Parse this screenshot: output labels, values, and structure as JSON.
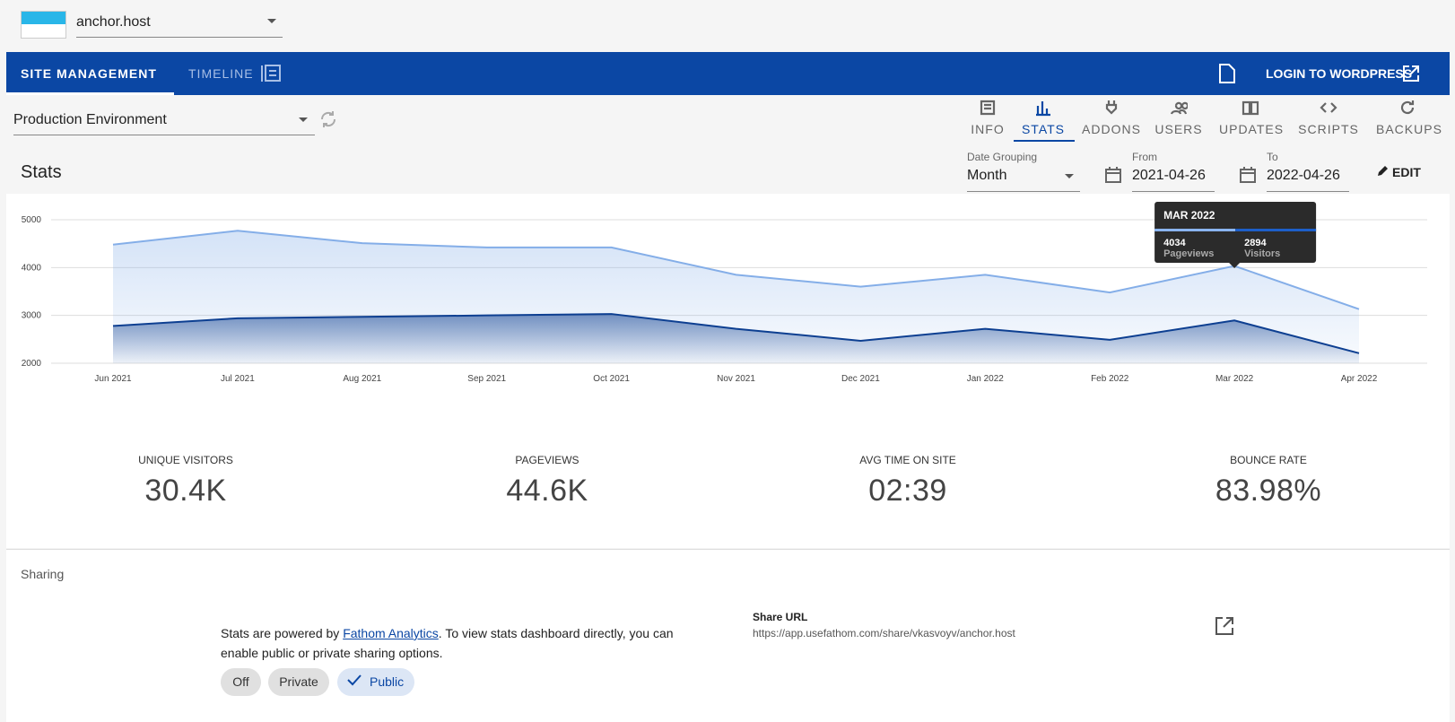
{
  "header": {
    "site": "anchor.host"
  },
  "tabs": [
    "SITE MANAGEMENT",
    "TIMELINE"
  ],
  "login": "LOGIN TO WORDPRESS",
  "environment": "Production Environment",
  "nav": [
    "INFO",
    "STATS",
    "ADDONS",
    "USERS",
    "UPDATES",
    "SCRIPTS",
    "BACKUPS"
  ],
  "section_title": "Stats",
  "filters": {
    "date_grouping_label": "Date Grouping",
    "date_grouping": "Month",
    "from_label": "From",
    "from": "2021-04-26",
    "to_label": "To",
    "to": "2022-04-26",
    "edit": "EDIT"
  },
  "chart_data": {
    "type": "area",
    "x": [
      "Jun 2021",
      "Jul 2021",
      "Aug 2021",
      "Sep 2021",
      "Oct 2021",
      "Nov 2021",
      "Dec 2021",
      "Jan 2022",
      "Feb 2022",
      "Mar 2022",
      "Apr 2022"
    ],
    "series": [
      {
        "name": "Pageviews",
        "color": "#84aee8",
        "values": [
          4480,
          4770,
          4510,
          4420,
          4420,
          3850,
          3600,
          3850,
          3480,
          4034,
          3130
        ]
      },
      {
        "name": "Visitors",
        "color": "#0d3f91",
        "values": [
          2780,
          2940,
          2970,
          3000,
          3030,
          2720,
          2470,
          2720,
          2490,
          2894,
          2210
        ]
      }
    ],
    "ylim": [
      2000,
      5000
    ],
    "yticks": [
      2000,
      3000,
      4000,
      5000
    ],
    "grid": true,
    "tooltip": {
      "title": "MAR 2022"
    }
  },
  "metrics": [
    {
      "label": "UNIQUE VISITORS",
      "value": "30.4K"
    },
    {
      "label": "PAGEVIEWS",
      "value": "44.6K"
    },
    {
      "label": "AVG TIME ON SITE",
      "value": "02:39"
    },
    {
      "label": "BOUNCE RATE",
      "value": "83.98%"
    }
  ],
  "sharing": {
    "title": "Sharing",
    "text_before": "Stats are powered by ",
    "link": "Fathom Analytics",
    "text_after": ". To view stats dashboard directly, you can enable public or private sharing options.",
    "options": [
      "Off",
      "Private",
      "Public"
    ],
    "share_url_label": "Share URL",
    "share_url": "https://app.usefathom.com/share/vkasvoyv/anchor.host"
  }
}
